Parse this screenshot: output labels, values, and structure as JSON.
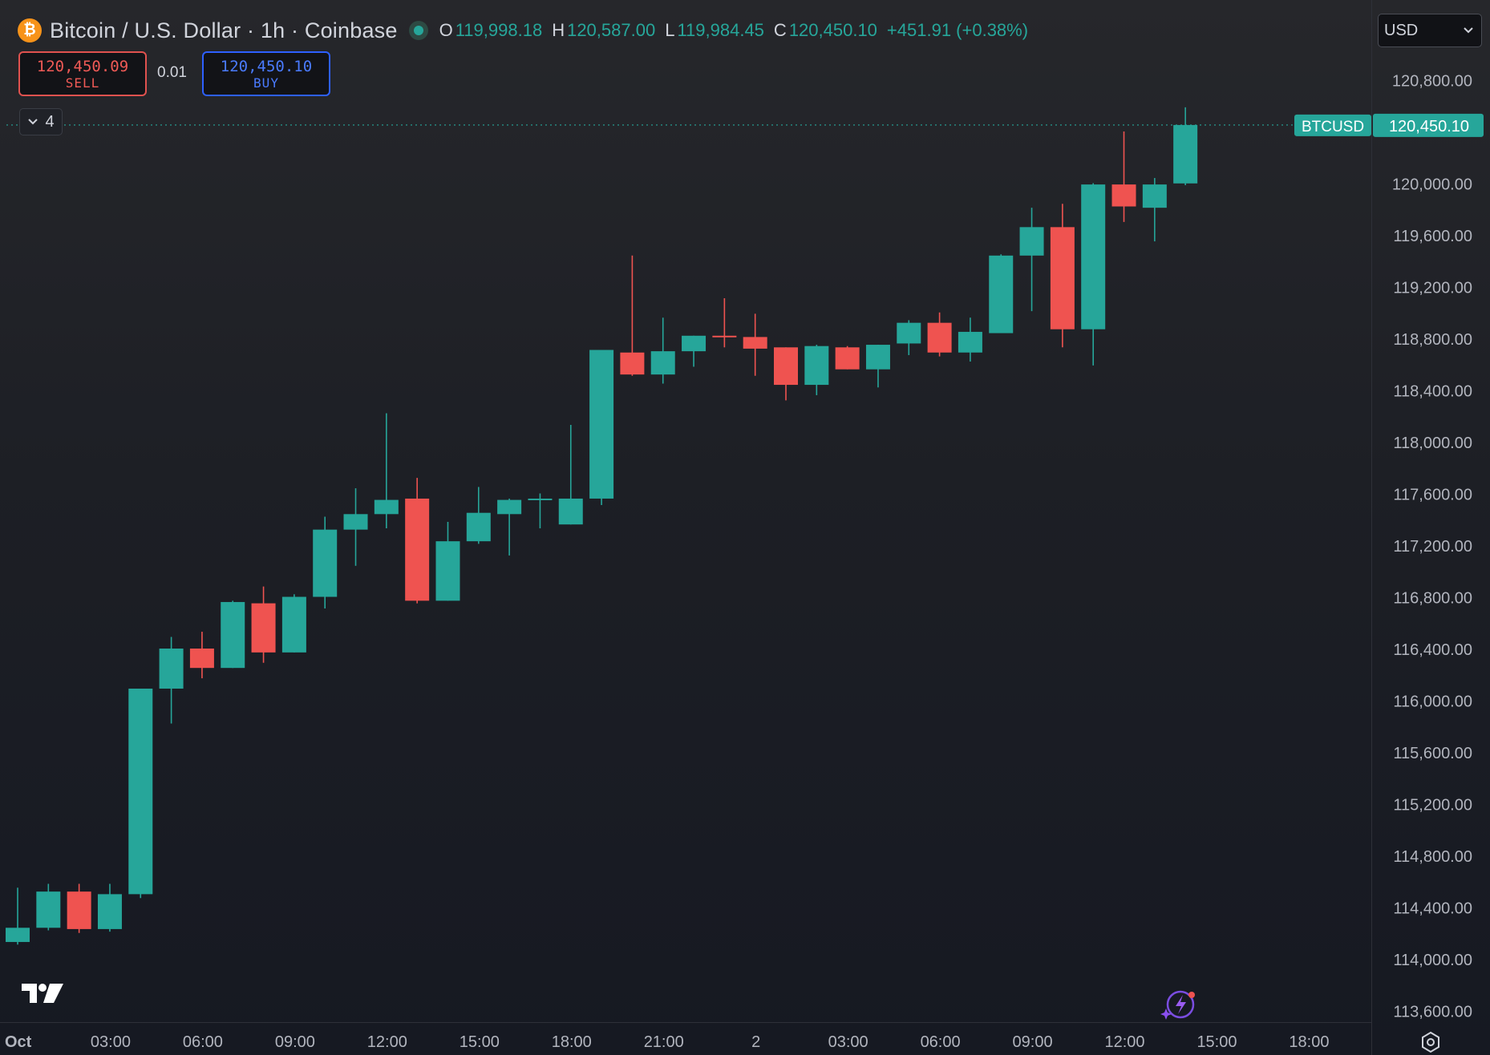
{
  "header": {
    "logo_glyph": "₿",
    "title": "Bitcoin / U.S. Dollar · 1h · Coinbase",
    "ohlc": [
      {
        "key": "O",
        "value": "119,998.18"
      },
      {
        "key": "H",
        "value": "120,587.00"
      },
      {
        "key": "L",
        "value": "119,984.45"
      },
      {
        "key": "C",
        "value": "120,450.10"
      }
    ],
    "change": "+451.91 (+0.38%)"
  },
  "trade": {
    "sell_price": "120,450.09",
    "sell_label": "SELL",
    "quantity": "0.01",
    "buy_price": "120,450.10",
    "buy_label": "BUY"
  },
  "indicators_count": "4",
  "currency": {
    "selected": "USD"
  },
  "icons": {
    "logo": "bitcoin-logo-icon",
    "live": "market-live-dot-icon",
    "collapse": "chevron-down-icon",
    "select": "chevron-down-icon",
    "brand": "tradingview-logo-icon",
    "assistant": "ai-assistant-icon",
    "settings": "gear-icon"
  },
  "colors": {
    "up": "#26a69a",
    "down": "#ef5350",
    "background": "#1c1f26",
    "sell": "#f05a56",
    "buy": "#4a7bff"
  },
  "chart_data": {
    "type": "candlestick",
    "symbol": "BTCUSD",
    "interval": "1h",
    "last_price": 120450.1,
    "last_price_label": "120,450.10",
    "y_axis": {
      "ylim": [
        113540,
        121200
      ],
      "ticks": [
        113600,
        114000,
        114400,
        114800,
        115200,
        115600,
        116000,
        116400,
        116800,
        117200,
        117600,
        118000,
        118400,
        118800,
        119200,
        119600,
        120000,
        120800
      ],
      "tick_labels": [
        "113,600.00",
        "114,000.00",
        "114,400.00",
        "114,800.00",
        "115,200.00",
        "115,600.00",
        "116,000.00",
        "116,400.00",
        "116,800.00",
        "117,200.00",
        "117,600.00",
        "118,000.00",
        "118,400.00",
        "118,800.00",
        "119,200.00",
        "119,600.00",
        "120,000.00",
        "120,800.00"
      ]
    },
    "x_axis": {
      "ticks": [
        0,
        3,
        6,
        9,
        12,
        15,
        18,
        21,
        24,
        27,
        30,
        33,
        36,
        39,
        42
      ],
      "tick_labels": [
        "Oct",
        "03:00",
        "06:00",
        "09:00",
        "12:00",
        "15:00",
        "18:00",
        "21:00",
        "2",
        "03:00",
        "06:00",
        "09:00",
        "12:00",
        "15:00",
        "18:00"
      ],
      "note": "hours since Oct 1 00:00"
    },
    "candles": [
      {
        "t": 0,
        "o": 114130,
        "h": 114550,
        "l": 114110,
        "c": 114240
      },
      {
        "t": 1,
        "o": 114240,
        "h": 114580,
        "l": 114220,
        "c": 114520
      },
      {
        "t": 2,
        "o": 114520,
        "h": 114580,
        "l": 114200,
        "c": 114230
      },
      {
        "t": 3,
        "o": 114230,
        "h": 114580,
        "l": 114210,
        "c": 114500
      },
      {
        "t": 4,
        "o": 114500,
        "h": 116080,
        "l": 114470,
        "c": 116090
      },
      {
        "t": 5,
        "o": 116090,
        "h": 116490,
        "l": 115820,
        "c": 116400
      },
      {
        "t": 6,
        "o": 116400,
        "h": 116530,
        "l": 116170,
        "c": 116250
      },
      {
        "t": 7,
        "o": 116250,
        "h": 116770,
        "l": 116250,
        "c": 116760
      },
      {
        "t": 8,
        "o": 116750,
        "h": 116880,
        "l": 116290,
        "c": 116370
      },
      {
        "t": 9,
        "o": 116370,
        "h": 116820,
        "l": 116370,
        "c": 116800
      },
      {
        "t": 10,
        "o": 116800,
        "h": 117420,
        "l": 116710,
        "c": 117320
      },
      {
        "t": 11,
        "o": 117320,
        "h": 117640,
        "l": 117040,
        "c": 117440
      },
      {
        "t": 12,
        "o": 117440,
        "h": 118220,
        "l": 117330,
        "c": 117550
      },
      {
        "t": 13,
        "o": 117560,
        "h": 117720,
        "l": 116750,
        "c": 116770
      },
      {
        "t": 14,
        "o": 116770,
        "h": 117380,
        "l": 116770,
        "c": 117230
      },
      {
        "t": 15,
        "o": 117230,
        "h": 117650,
        "l": 117210,
        "c": 117450
      },
      {
        "t": 16,
        "o": 117440,
        "h": 117560,
        "l": 117120,
        "c": 117550
      },
      {
        "t": 17,
        "o": 117550,
        "h": 117600,
        "l": 117330,
        "c": 117560
      },
      {
        "t": 18,
        "o": 117360,
        "h": 118130,
        "l": 117360,
        "c": 117560
      },
      {
        "t": 19,
        "o": 117560,
        "h": 118680,
        "l": 117510,
        "c": 118710
      },
      {
        "t": 20,
        "o": 118690,
        "h": 119440,
        "l": 118510,
        "c": 118520
      },
      {
        "t": 21,
        "o": 118520,
        "h": 118960,
        "l": 118450,
        "c": 118700
      },
      {
        "t": 22,
        "o": 118700,
        "h": 118820,
        "l": 118580,
        "c": 118820
      },
      {
        "t": 23,
        "o": 118820,
        "h": 119110,
        "l": 118730,
        "c": 118810
      },
      {
        "t": 24,
        "o": 118810,
        "h": 118990,
        "l": 118510,
        "c": 118720
      },
      {
        "t": 25,
        "o": 118730,
        "h": 118730,
        "l": 118320,
        "c": 118440
      },
      {
        "t": 26,
        "o": 118440,
        "h": 118750,
        "l": 118360,
        "c": 118740
      },
      {
        "t": 27,
        "o": 118730,
        "h": 118740,
        "l": 118560,
        "c": 118560
      },
      {
        "t": 28,
        "o": 118560,
        "h": 118750,
        "l": 118420,
        "c": 118750
      },
      {
        "t": 29,
        "o": 118760,
        "h": 118940,
        "l": 118670,
        "c": 118920
      },
      {
        "t": 30,
        "o": 118920,
        "h": 119000,
        "l": 118660,
        "c": 118690
      },
      {
        "t": 31,
        "o": 118690,
        "h": 118960,
        "l": 118620,
        "c": 118850
      },
      {
        "t": 32,
        "o": 118840,
        "h": 119450,
        "l": 118840,
        "c": 119440
      },
      {
        "t": 33,
        "o": 119440,
        "h": 119810,
        "l": 119010,
        "c": 119660
      },
      {
        "t": 34,
        "o": 119660,
        "h": 119840,
        "l": 118730,
        "c": 118870
      },
      {
        "t": 35,
        "o": 118870,
        "h": 120000,
        "l": 118590,
        "c": 119990
      },
      {
        "t": 36,
        "o": 119990,
        "h": 120400,
        "l": 119700,
        "c": 119820
      },
      {
        "t": 37,
        "o": 119810,
        "h": 120040,
        "l": 119550,
        "c": 119990
      },
      {
        "t": 38,
        "o": 119998.18,
        "h": 120587.0,
        "l": 119984.45,
        "c": 120450.1
      }
    ]
  }
}
